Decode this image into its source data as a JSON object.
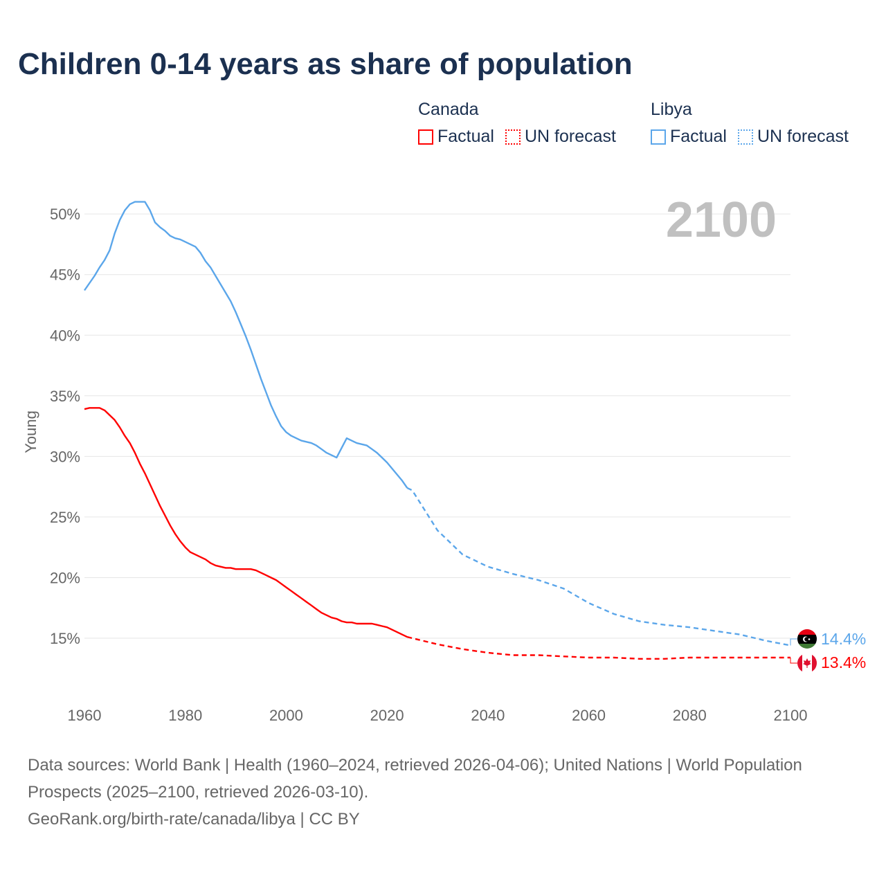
{
  "colors": {
    "canada": "#ff0000",
    "libya": "#5ba6ea",
    "title": "#1b3050",
    "grid": "#e6e6e6",
    "year": "#c0c0c0"
  },
  "legend": {
    "canada": {
      "name": "Canada",
      "factual": "Factual",
      "forecast": "UN forecast"
    },
    "libya": {
      "name": "Libya",
      "factual": "Factual",
      "forecast": "UN forecast"
    }
  },
  "year_label": "2100",
  "end_labels": {
    "libya": "14.4%",
    "canada": "13.4%"
  },
  "footer": {
    "sources": "Data sources: World Bank | Health (1960–2024, retrieved 2026-04-06); United Nations | World Population Prospects (2025–2100, retrieved 2026-03-10).",
    "link": "GeoRank.org/birth-rate/canada/libya | CC BY"
  },
  "chart_data": {
    "type": "line",
    "title": "Children 0-14 years as share of population",
    "xlabel": "",
    "ylabel": "Young",
    "xlim": [
      1960,
      2100
    ],
    "ylim": [
      10.5,
      52
    ],
    "grid": true,
    "legend_placement": "top-right",
    "x_ticks": [
      "1960",
      "1980",
      "2000",
      "2020",
      "2040",
      "2060",
      "2080",
      "2100"
    ],
    "y_ticks": [
      {
        "v": 15,
        "label": "15%"
      },
      {
        "v": 20,
        "label": "20%"
      },
      {
        "v": 25,
        "label": "25%"
      },
      {
        "v": 30,
        "label": "30%"
      },
      {
        "v": 35,
        "label": "35%"
      },
      {
        "v": 40,
        "label": "40%"
      },
      {
        "v": 45,
        "label": "45%"
      },
      {
        "v": 50,
        "label": "50%"
      }
    ],
    "series": [
      {
        "name": "Libya",
        "key": "libya",
        "factual": {
          "x_start": 1960,
          "values": [
            43.7,
            44.3,
            44.9,
            45.6,
            46.2,
            47.0,
            48.4,
            49.5,
            50.3,
            50.8,
            51.0,
            51.0,
            51.0,
            50.3,
            49.3,
            48.9,
            48.6,
            48.2,
            48.0,
            47.9,
            47.7,
            47.5,
            47.3,
            46.8,
            46.1,
            45.6,
            44.9,
            44.2,
            43.5,
            42.8,
            41.9,
            40.9,
            39.9,
            38.8,
            37.6,
            36.4,
            35.3,
            34.2,
            33.3,
            32.5,
            32.0,
            31.7,
            31.5,
            31.3,
            31.2,
            31.1,
            30.9,
            30.6,
            30.3,
            30.1,
            29.9,
            30.7,
            31.5,
            31.3,
            31.1,
            31.0,
            30.9,
            30.6,
            30.3,
            29.9,
            29.5,
            29.0,
            28.5,
            28.0,
            27.4
          ]
        },
        "forecast": {
          "x": [
            2024,
            2025,
            2030,
            2035,
            2040,
            2045,
            2050,
            2055,
            2060,
            2065,
            2070,
            2075,
            2080,
            2085,
            2090,
            2095,
            2100
          ],
          "values": [
            27.4,
            27.2,
            23.9,
            21.9,
            20.9,
            20.3,
            19.8,
            19.1,
            17.9,
            17.0,
            16.4,
            16.1,
            15.9,
            15.6,
            15.3,
            14.8,
            14.4
          ]
        }
      },
      {
        "name": "Canada",
        "key": "canada",
        "factual": {
          "x_start": 1960,
          "values": [
            33.9,
            34.0,
            34.0,
            34.0,
            33.8,
            33.4,
            33.0,
            32.4,
            31.7,
            31.1,
            30.3,
            29.4,
            28.6,
            27.7,
            26.8,
            25.9,
            25.1,
            24.3,
            23.6,
            23.0,
            22.5,
            22.1,
            21.9,
            21.7,
            21.5,
            21.2,
            21.0,
            20.9,
            20.8,
            20.8,
            20.7,
            20.7,
            20.7,
            20.7,
            20.6,
            20.4,
            20.2,
            20.0,
            19.8,
            19.5,
            19.2,
            18.9,
            18.6,
            18.3,
            18.0,
            17.7,
            17.4,
            17.1,
            16.9,
            16.7,
            16.6,
            16.4,
            16.3,
            16.3,
            16.2,
            16.2,
            16.2,
            16.2,
            16.1,
            16.0,
            15.9,
            15.7,
            15.5,
            15.3,
            15.1
          ]
        },
        "forecast": {
          "x": [
            2024,
            2025,
            2030,
            2035,
            2040,
            2045,
            2050,
            2055,
            2060,
            2065,
            2070,
            2075,
            2080,
            2085,
            2090,
            2095,
            2100
          ],
          "values": [
            15.1,
            15.0,
            14.5,
            14.1,
            13.8,
            13.6,
            13.6,
            13.5,
            13.4,
            13.4,
            13.3,
            13.3,
            13.4,
            13.4,
            13.4,
            13.4,
            13.4
          ]
        }
      }
    ]
  }
}
